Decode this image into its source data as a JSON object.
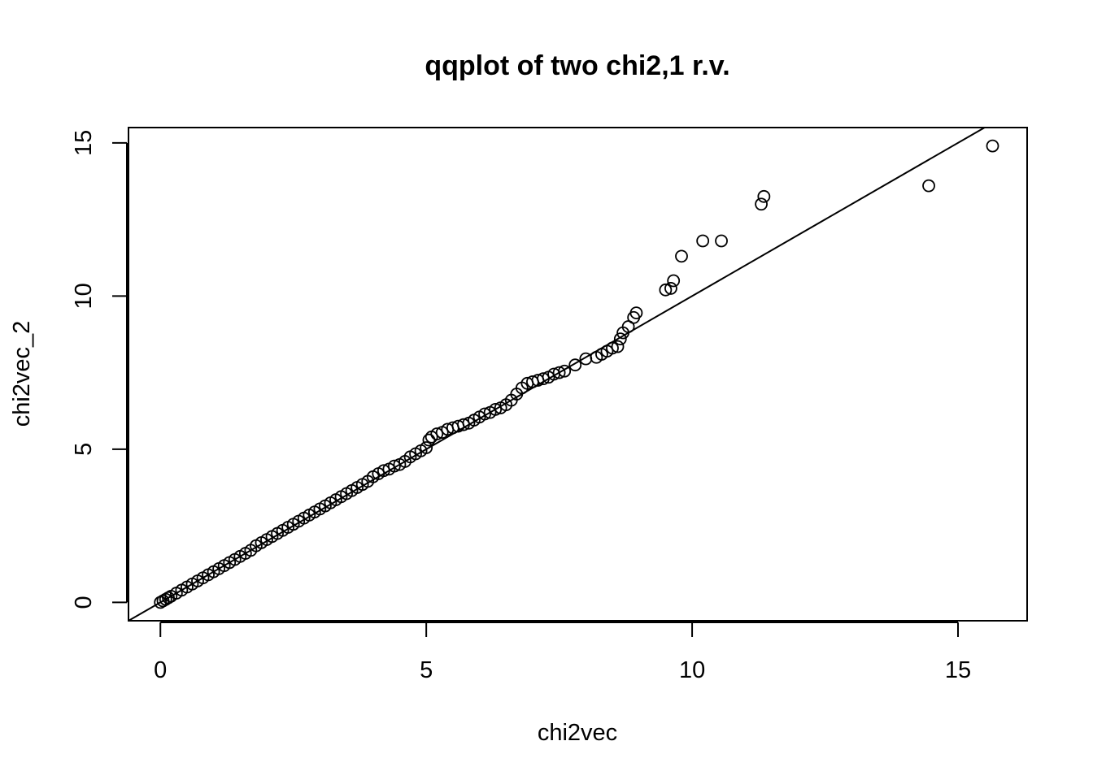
{
  "chart_data": {
    "type": "scatter",
    "title": "qqplot of two chi2,1 r.v.",
    "xlabel": "chi2vec",
    "ylabel": "chi2vec_2",
    "xlim": [
      -0.6,
      16.3
    ],
    "ylim": [
      -0.6,
      15.5
    ],
    "x_ticks": [
      0,
      5,
      10,
      15
    ],
    "y_ticks": [
      0,
      5,
      10,
      15
    ],
    "x_tick_labels": [
      "0",
      "5",
      "10",
      "15"
    ],
    "y_tick_labels": [
      "0",
      "5",
      "10",
      "15"
    ],
    "grid": false,
    "legend": "none",
    "reference_line": {
      "intercept": 0,
      "slope": 1
    },
    "points": {
      "x": [
        0,
        0.05,
        0.1,
        0.15,
        0.2,
        0.3,
        0.4,
        0.5,
        0.6,
        0.7,
        0.8,
        0.9,
        1.0,
        1.1,
        1.2,
        1.3,
        1.4,
        1.5,
        1.6,
        1.7,
        1.8,
        1.9,
        2.0,
        2.1,
        2.2,
        2.3,
        2.4,
        2.5,
        2.6,
        2.7,
        2.8,
        2.9,
        3.0,
        3.1,
        3.2,
        3.3,
        3.4,
        3.5,
        3.6,
        3.7,
        3.8,
        3.9,
        4.0,
        4.1,
        4.2,
        4.3,
        4.4,
        4.5,
        4.6,
        4.7,
        4.8,
        4.9,
        5.0,
        5.05,
        5.1,
        5.2,
        5.3,
        5.4,
        5.5,
        5.6,
        5.7,
        5.8,
        5.9,
        6.0,
        6.1,
        6.2,
        6.3,
        6.4,
        6.5,
        6.6,
        6.7,
        6.8,
        6.9,
        7.0,
        7.1,
        7.2,
        7.3,
        7.4,
        7.5,
        7.6,
        7.8,
        8.0,
        8.2,
        8.3,
        8.4,
        8.5,
        8.6,
        8.65,
        8.7,
        8.8,
        8.9,
        8.95,
        9.5,
        9.6,
        9.65,
        9.8,
        10.2,
        10.55,
        11.3,
        11.35,
        14.45,
        15.65
      ],
      "y": [
        0,
        0.05,
        0.1,
        0.15,
        0.2,
        0.3,
        0.4,
        0.5,
        0.6,
        0.7,
        0.8,
        0.9,
        1.0,
        1.1,
        1.2,
        1.3,
        1.4,
        1.5,
        1.6,
        1.7,
        1.85,
        1.95,
        2.05,
        2.15,
        2.25,
        2.35,
        2.45,
        2.55,
        2.65,
        2.75,
        2.85,
        2.95,
        3.05,
        3.15,
        3.25,
        3.35,
        3.45,
        3.55,
        3.65,
        3.75,
        3.85,
        3.95,
        4.1,
        4.2,
        4.3,
        4.35,
        4.45,
        4.5,
        4.6,
        4.75,
        4.85,
        4.95,
        5.05,
        5.3,
        5.4,
        5.5,
        5.55,
        5.65,
        5.7,
        5.75,
        5.8,
        5.85,
        5.95,
        6.05,
        6.15,
        6.2,
        6.3,
        6.35,
        6.45,
        6.6,
        6.8,
        7.0,
        7.15,
        7.2,
        7.25,
        7.3,
        7.35,
        7.45,
        7.5,
        7.55,
        7.75,
        7.95,
        8.0,
        8.1,
        8.2,
        8.3,
        8.35,
        8.6,
        8.8,
        9.0,
        9.3,
        9.45,
        10.2,
        10.25,
        10.5,
        11.3,
        11.8,
        11.8,
        13.0,
        13.25,
        13.6,
        14.9
      ]
    }
  }
}
